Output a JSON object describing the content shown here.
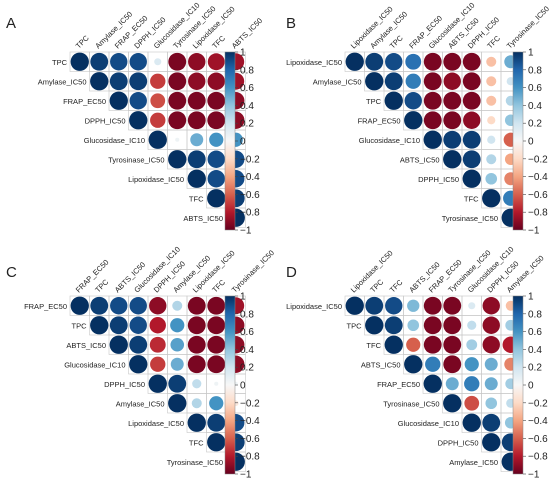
{
  "chart_data": [
    {
      "type": "heatmap",
      "panel_label": "A",
      "variables": [
        "TPC",
        "Amylase_IC50",
        "FRAP_EC50",
        "DPPH_IC50",
        "Glucosidase_IC10",
        "Tyrosinase_IC50",
        "Lipoxidase_IC50",
        "TFC",
        "ABTS_IC50"
      ],
      "upper_triangle": [
        [
          0.95,
          0.9,
          0.9,
          0.15,
          -0.95,
          -0.9,
          -0.85,
          -0.85
        ],
        [
          0.95,
          0.95,
          -0.7,
          -0.95,
          -0.9,
          -0.9,
          -0.85
        ],
        [
          0.9,
          -0.65,
          -0.95,
          -0.95,
          -0.95,
          -0.9
        ],
        [
          -0.7,
          -0.95,
          -0.95,
          -0.95,
          -0.9
        ],
        [
          0.05,
          0.5,
          0.6,
          0.6
        ],
        [
          0.95,
          0.9,
          0.9
        ],
        [
          0.9,
          0.9
        ],
        [
          0.95
        ]
      ],
      "colorbar_ticks": [
        "1",
        "0.8",
        "0.6",
        "0.4",
        "0.2",
        "0",
        "−0.2",
        "−0.4",
        "−0.6",
        "−0.8",
        "−1"
      ]
    },
    {
      "type": "heatmap",
      "panel_label": "B",
      "variables": [
        "Lipoxidase_IC50",
        "Amylase_IC50",
        "TPC",
        "FRAP_EC50",
        "Glucosidase_IC10",
        "ABTS_IC50",
        "DPPH_IC50",
        "TFC",
        "Tyrosinase_IC50"
      ],
      "upper_triangle": [
        [
          0.95,
          0.9,
          0.75,
          -0.95,
          -0.95,
          -0.95,
          -0.3,
          0.5
        ],
        [
          0.95,
          0.7,
          -0.95,
          -0.9,
          -0.95,
          -0.3,
          0.2
        ],
        [
          0.9,
          -0.95,
          -0.95,
          -0.95,
          -0.3,
          0.3
        ],
        [
          -0.95,
          -0.95,
          -0.9,
          -0.2,
          0.4
        ],
        [
          0.95,
          0.95,
          0.2,
          -0.6
        ],
        [
          0.95,
          0.3,
          -0.4
        ],
        [
          0.4,
          -0.5
        ],
        [
          0.7
        ]
      ],
      "colorbar_ticks": [
        "1",
        "0.8",
        "0.6",
        "0.4",
        "0.2",
        "0",
        "−0.2",
        "−0.4",
        "−0.6",
        "−0.8",
        "−1"
      ]
    },
    {
      "type": "heatmap",
      "panel_label": "C",
      "variables": [
        "FRAP_EC50",
        "TPC",
        "ABTS_IC50",
        "Glucosidase_IC10",
        "DPPH_IC50",
        "Amylase_IC50",
        "Lipoxidase_IC50",
        "TFC",
        "Tyrosinase_IC50"
      ],
      "upper_triangle": [
        [
          0.95,
          0.9,
          0.9,
          -0.9,
          0.3,
          -0.95,
          -0.95,
          -0.85
        ],
        [
          0.95,
          0.9,
          -0.8,
          0.6,
          -0.95,
          -0.95,
          -0.9
        ],
        [
          0.95,
          -0.75,
          0.55,
          -0.95,
          -0.95,
          -0.9
        ],
        [
          -0.7,
          0.5,
          -0.95,
          -0.95,
          -0.9
        ],
        [
          0.95,
          0.25,
          0.05,
          0.05
        ],
        [
          0.3,
          0.6,
          -0.1
        ],
        [
          0.95,
          0.9
        ],
        [
          0.95
        ]
      ],
      "colorbar_ticks": [
        "1",
        "0.8",
        "0.6",
        "0.4",
        "0.2",
        "0",
        "−0.2",
        "−0.4",
        "−0.6",
        "−0.8",
        "−1"
      ]
    },
    {
      "type": "heatmap",
      "panel_label": "D",
      "variables": [
        "Lipoxidase_IC50",
        "TPC",
        "TFC",
        "ABTS_IC50",
        "FRAP_EC50",
        "Tyrosinase_IC50",
        "Glucosidase_IC10",
        "DPPH_IC50",
        "Amylase_IC50"
      ],
      "upper_triangle": [
        [
          0.95,
          0.9,
          0.45,
          -0.95,
          -0.95,
          0.15,
          -0.9,
          -0.3
        ],
        [
          0.95,
          0.4,
          -0.95,
          -0.95,
          0.25,
          -0.9,
          0.35
        ],
        [
          -0.6,
          -0.95,
          -0.95,
          0.35,
          -0.9,
          -0.8
        ],
        [
          0.7,
          -0.95,
          0.6,
          0.5,
          -0.5
        ],
        [
          0.5,
          0.7,
          0.5,
          0.35
        ],
        [
          -0.65,
          0.4,
          0.25
        ],
        [
          0.95,
          0.4
        ],
        [
          0.95
        ]
      ],
      "colorbar_ticks": [
        "1",
        "0.8",
        "0.6",
        "0.4",
        "0.2",
        "0",
        "−0.2",
        "−0.4",
        "−0.6",
        "−0.8",
        "−1"
      ]
    }
  ]
}
